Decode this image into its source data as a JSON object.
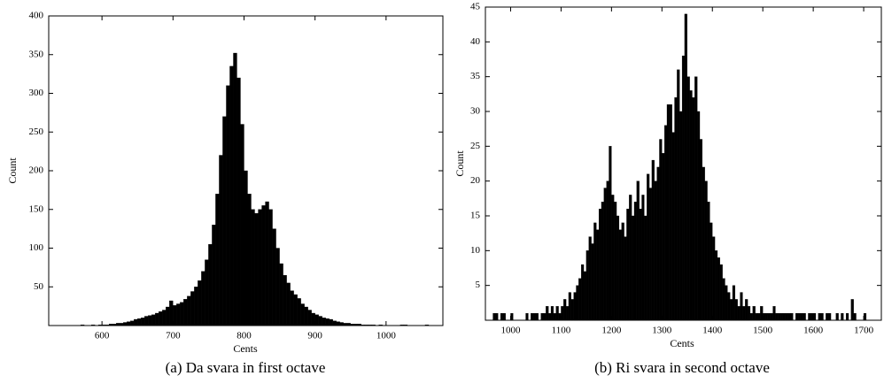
{
  "chart_data": [
    {
      "type": "histogram",
      "xlabel": "Cents",
      "ylabel": "Count",
      "caption": "(a)  Da svara in first octave",
      "color": "#000000",
      "xlim": [
        525,
        1080
      ],
      "ylim": [
        0,
        400
      ],
      "xticks": [
        600,
        700,
        800,
        900,
        1000
      ],
      "yticks": [
        50,
        100,
        150,
        200,
        250,
        300,
        350,
        400
      ],
      "bins": [
        540,
        545,
        550,
        555,
        560,
        565,
        570,
        575,
        580,
        585,
        590,
        595,
        600,
        605,
        610,
        615,
        620,
        625,
        630,
        635,
        640,
        645,
        650,
        655,
        660,
        665,
        670,
        675,
        680,
        685,
        690,
        695,
        700,
        705,
        710,
        715,
        720,
        725,
        730,
        735,
        740,
        745,
        750,
        755,
        760,
        765,
        770,
        775,
        780,
        785,
        790,
        795,
        800,
        805,
        810,
        815,
        820,
        825,
        830,
        835,
        840,
        845,
        850,
        855,
        860,
        865,
        870,
        875,
        880,
        885,
        890,
        895,
        900,
        905,
        910,
        915,
        920,
        925,
        930,
        935,
        940,
        945,
        950,
        955,
        960,
        965,
        970,
        975,
        980,
        985,
        990,
        995,
        1000,
        1005,
        1010,
        1015,
        1020,
        1025,
        1030,
        1035,
        1040,
        1045,
        1050,
        1055,
        1060,
        1065,
        1070
      ],
      "counts": [
        0,
        0,
        0,
        0,
        0,
        0,
        1,
        0,
        0,
        1,
        0,
        1,
        1,
        1,
        2,
        2,
        3,
        3,
        4,
        5,
        6,
        8,
        9,
        10,
        12,
        13,
        14,
        16,
        18,
        20,
        24,
        32,
        26,
        28,
        30,
        34,
        38,
        44,
        50,
        58,
        70,
        85,
        105,
        130,
        170,
        220,
        270,
        310,
        335,
        352,
        320,
        260,
        200,
        170,
        150,
        145,
        150,
        155,
        160,
        150,
        125,
        100,
        80,
        65,
        55,
        45,
        40,
        35,
        28,
        24,
        20,
        16,
        14,
        12,
        10,
        9,
        8,
        6,
        5,
        4,
        3,
        3,
        2,
        2,
        2,
        1,
        1,
        1,
        1,
        0,
        1,
        0,
        0,
        0,
        0,
        0,
        1,
        1,
        0,
        0,
        0,
        0,
        0,
        1,
        0,
        0
      ]
    },
    {
      "type": "histogram",
      "xlabel": "Cents",
      "ylabel": "Count",
      "caption": "(b)  Ri svara in second octave",
      "color": "#000000",
      "xlim": [
        950,
        1735
      ],
      "ylim": [
        0,
        45
      ],
      "xticks": [
        1000,
        1100,
        1200,
        1300,
        1400,
        1500,
        1600,
        1700
      ],
      "yticks": [
        5,
        10,
        15,
        20,
        25,
        30,
        35,
        40,
        45
      ],
      "bins": [
        965,
        970,
        975,
        980,
        985,
        990,
        995,
        1000,
        1005,
        1010,
        1015,
        1020,
        1025,
        1030,
        1035,
        1040,
        1045,
        1050,
        1055,
        1060,
        1065,
        1070,
        1075,
        1080,
        1085,
        1090,
        1095,
        1100,
        1105,
        1110,
        1115,
        1120,
        1125,
        1130,
        1135,
        1140,
        1145,
        1150,
        1155,
        1160,
        1165,
        1170,
        1175,
        1180,
        1185,
        1190,
        1195,
        1200,
        1205,
        1210,
        1215,
        1220,
        1225,
        1230,
        1235,
        1240,
        1245,
        1250,
        1255,
        1260,
        1265,
        1270,
        1275,
        1280,
        1285,
        1290,
        1295,
        1300,
        1305,
        1310,
        1315,
        1320,
        1325,
        1330,
        1335,
        1340,
        1345,
        1350,
        1355,
        1360,
        1365,
        1370,
        1375,
        1380,
        1385,
        1390,
        1395,
        1400,
        1405,
        1410,
        1415,
        1420,
        1425,
        1430,
        1435,
        1440,
        1445,
        1450,
        1455,
        1460,
        1465,
        1470,
        1475,
        1480,
        1485,
        1490,
        1495,
        1500,
        1505,
        1510,
        1515,
        1520,
        1525,
        1530,
        1535,
        1540,
        1545,
        1550,
        1555,
        1560,
        1565,
        1570,
        1575,
        1580,
        1585,
        1590,
        1595,
        1600,
        1605,
        1610,
        1615,
        1620,
        1625,
        1630,
        1635,
        1640,
        1645,
        1650,
        1655,
        1660,
        1665,
        1670,
        1675,
        1680,
        1685,
        1690,
        1695,
        1700,
        1705,
        1710,
        1715
      ],
      "counts": [
        1,
        1,
        0,
        1,
        1,
        0,
        0,
        1,
        0,
        0,
        0,
        0,
        0,
        1,
        0,
        1,
        1,
        1,
        0,
        1,
        1,
        2,
        1,
        2,
        1,
        2,
        1,
        2,
        3,
        2,
        4,
        3,
        4,
        5,
        6,
        8,
        7,
        10,
        12,
        11,
        14,
        13,
        16,
        17,
        19,
        20,
        25,
        18,
        17,
        15,
        13,
        14,
        12,
        16,
        18,
        15,
        17,
        20,
        16,
        18,
        15,
        21,
        19,
        23,
        20,
        22,
        26,
        24,
        28,
        31,
        31,
        27,
        32,
        36,
        30,
        38,
        44,
        35,
        33,
        32,
        35,
        30,
        26,
        22,
        20,
        17,
        14,
        12,
        10,
        9,
        8,
        6,
        5,
        4,
        3,
        5,
        3,
        2,
        4,
        2,
        3,
        2,
        1,
        2,
        1,
        1,
        2,
        1,
        1,
        1,
        1,
        2,
        1,
        1,
        1,
        1,
        1,
        1,
        1,
        0,
        1,
        1,
        1,
        1,
        0,
        1,
        1,
        1,
        0,
        1,
        1,
        0,
        1,
        1,
        0,
        0,
        1,
        0,
        1,
        0,
        1,
        0,
        3,
        1,
        0,
        0,
        0,
        1,
        0,
        0
      ]
    }
  ]
}
